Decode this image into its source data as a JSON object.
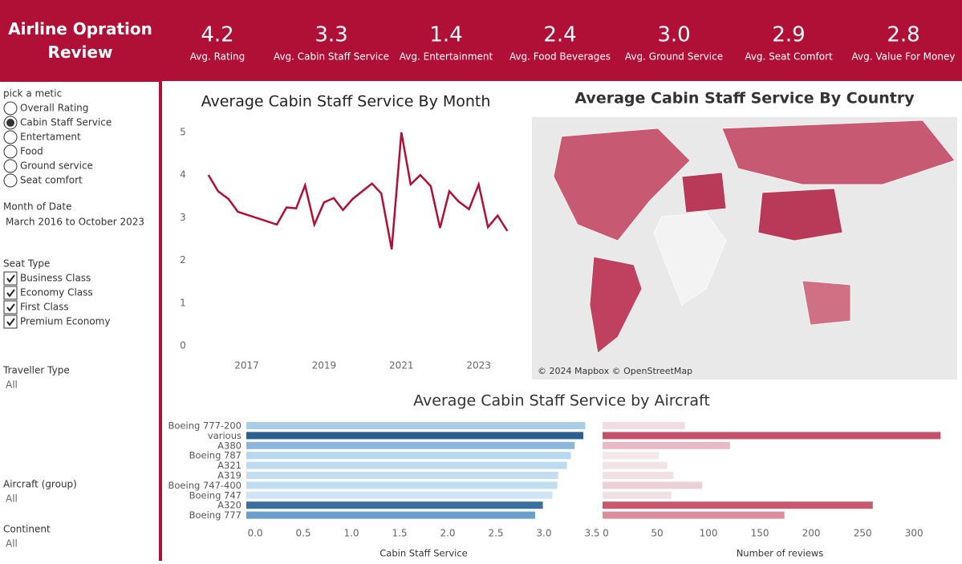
{
  "header": {
    "title": "Airline Opration Review"
  },
  "kpis": [
    {
      "value": "4.2",
      "label": "Avg. Rating"
    },
    {
      "value": "3.3",
      "label": "Avg. Cabin Staff Service"
    },
    {
      "value": "1.4",
      "label": "Avg. Entertainment"
    },
    {
      "value": "2.4",
      "label": "Avg. Food Beverages"
    },
    {
      "value": "3.0",
      "label": "Avg. Ground Service"
    },
    {
      "value": "2.9",
      "label": "Avg. Seat Comfort"
    },
    {
      "value": "2.8",
      "label": "Avg. Value For Money"
    }
  ],
  "filters": {
    "metric": {
      "label": "pick a metic",
      "options": [
        "Overall Rating",
        "Cabin Staff Service",
        "Entertament",
        "Food",
        "Ground service",
        "Seat comfort"
      ],
      "selected": 1
    },
    "month": {
      "label": "Month of Date",
      "value": "March 2016 to October 2023"
    },
    "seat_type": {
      "label": "Seat Type",
      "options": [
        "Business Class",
        "Economy Class",
        "First Class",
        "Premium Economy"
      ]
    },
    "traveller_type": {
      "label": "Traveller Type",
      "value": "All"
    },
    "aircraft": {
      "label": "Aircraft (group)",
      "value": "All"
    },
    "continent": {
      "label": "Continent",
      "value": "All"
    }
  },
  "chart_data": [
    {
      "type": "line",
      "title": "Average Cabin Staff Service By Month",
      "color": "#b01035",
      "x": [
        2016.01,
        2016.26,
        2016.53,
        2016.77,
        2017.78,
        2018.03,
        2018.28,
        2018.51,
        2018.75,
        2019.0,
        2019.25,
        2019.49,
        2019.74,
        2020.24,
        2020.48,
        2020.75,
        2021.0,
        2021.24,
        2021.49,
        2021.76,
        2022.0,
        2022.24,
        2022.48,
        2022.75,
        2023.0,
        2023.24,
        2023.49,
        2023.74
      ],
      "values": [
        4.0,
        3.62,
        3.44,
        3.14,
        2.84,
        3.24,
        3.22,
        3.76,
        2.84,
        3.36,
        3.46,
        3.18,
        3.44,
        3.8,
        3.57,
        2.26,
        5.0,
        3.78,
        4.0,
        3.74,
        2.76,
        3.62,
        3.38,
        3.2,
        3.78,
        2.78,
        3.05,
        2.69
      ],
      "xlim": [
        2015.6,
        2023.9
      ],
      "xticks": [
        2017,
        2019,
        2021,
        2023
      ],
      "ylim": [
        0,
        5.3
      ],
      "yticks": [
        0,
        1,
        2,
        3,
        4,
        5
      ]
    },
    {
      "type": "map",
      "title": "Average Cabin Staff Service By Country",
      "attribution": "© 2024 Mapbox © OpenStreetMap"
    },
    {
      "type": "bar",
      "title": "Average Cabin Staff Service by Aircraft",
      "categories": [
        "Boeing 777-200",
        "various",
        "A380",
        "Boeing 787",
        "A321",
        "A319",
        "Boeing 747-400",
        "Boeing 747",
        "A320",
        "Boeing 777"
      ],
      "panels": [
        {
          "xlabel": "Cabin Staff Service",
          "xlim": [
            0,
            3.6
          ],
          "xticks": [
            {
              "value": 0,
              "label": "0.0"
            },
            {
              "value": 0.5,
              "label": "0.5"
            },
            {
              "value": 1,
              "label": "1.0"
            },
            {
              "value": 1.5,
              "label": "1.5"
            },
            {
              "value": 2,
              "label": "2.0"
            },
            {
              "value": 2.5,
              "label": "2.5"
            },
            {
              "value": 3,
              "label": "3.0"
            },
            {
              "value": 3.5,
              "label": "3.5"
            }
          ],
          "values": [
            3.52,
            3.5,
            3.41,
            3.37,
            3.33,
            3.24,
            3.23,
            3.18,
            3.08,
            3.0
          ],
          "colors": [
            "#a9cde9",
            "#2b5f8e",
            "#8bb7dc",
            "#b7d8f0",
            "#bcdbf1",
            "#c3def2",
            "#c0dcf1",
            "#cfe4f4",
            "#3a6f9f",
            "#6a9fcc"
          ]
        },
        {
          "xlabel": "Number of reviews",
          "xlim": [
            0,
            335
          ],
          "xticks": [
            0,
            50,
            100,
            150,
            200,
            250,
            300
          ],
          "values": [
            80,
            329,
            124,
            55,
            63,
            69,
            97,
            67,
            263,
            177
          ],
          "colors": [
            "#f0dce1",
            "#c5506c",
            "#e8b8c4",
            "#f4e8eb",
            "#f2e3e7",
            "#f1e0e4",
            "#ecd0d7",
            "#f1e1e5",
            "#c8586f",
            "#dc8c9f"
          ]
        }
      ]
    }
  ]
}
